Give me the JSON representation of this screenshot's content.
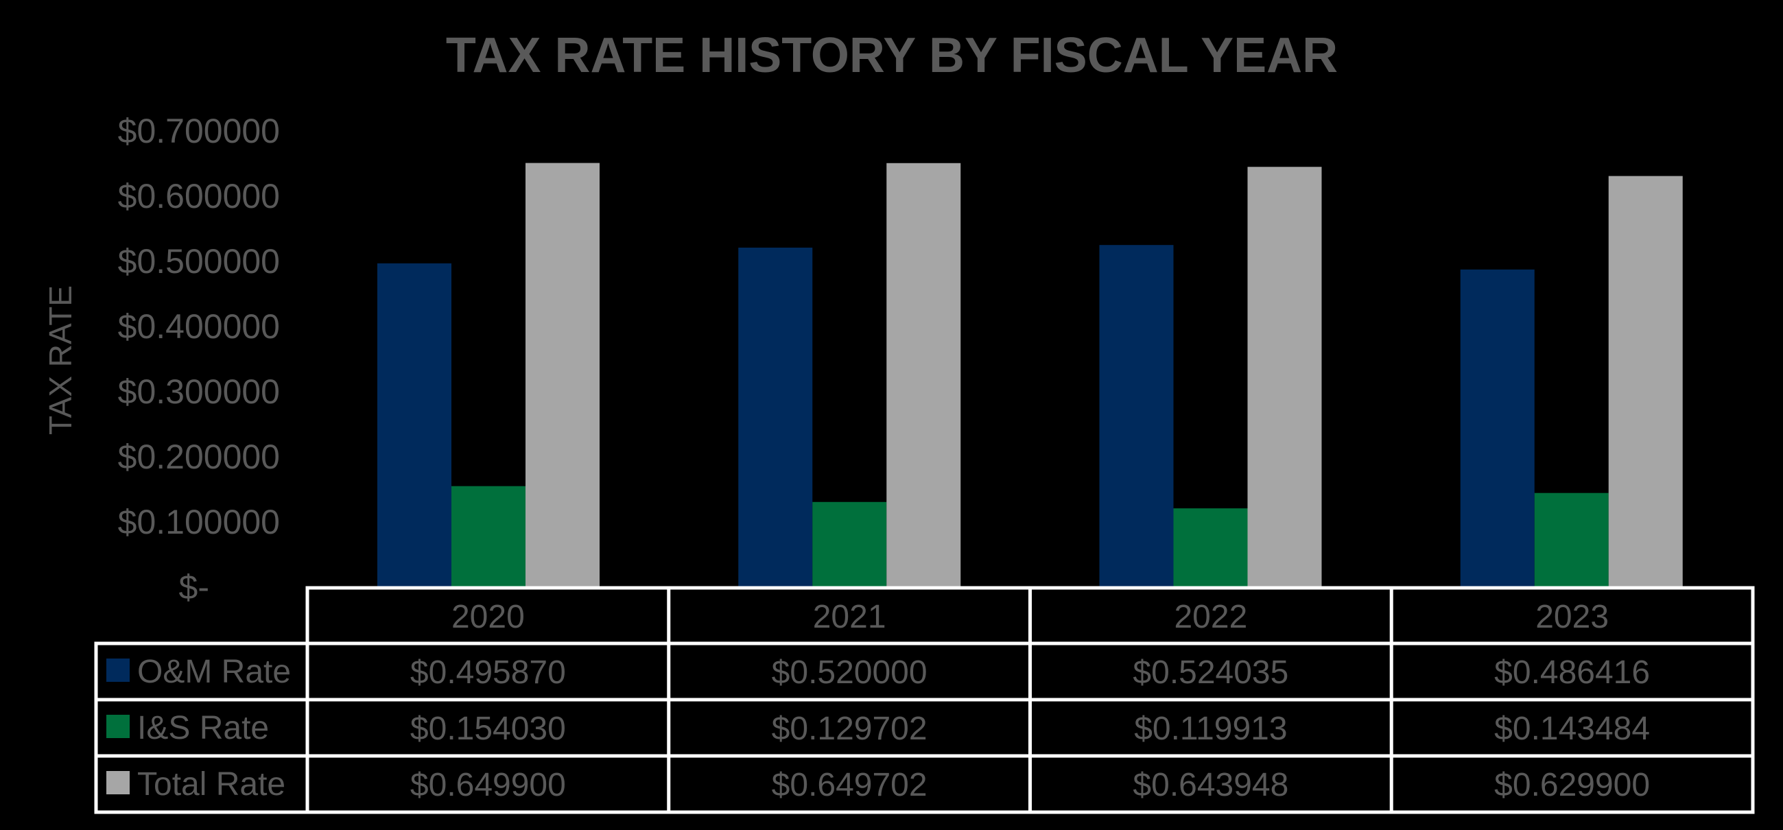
{
  "chart_data": {
    "type": "bar",
    "title": "TAX RATE HISTORY BY FISCAL YEAR",
    "xlabel": "",
    "ylabel": "TAX RATE",
    "ylim": [
      0,
      0.7
    ],
    "y_ticks": [
      {
        "value": 0.7,
        "label": "$0.700000"
      },
      {
        "value": 0.6,
        "label": "$0.600000"
      },
      {
        "value": 0.5,
        "label": "$0.500000"
      },
      {
        "value": 0.4,
        "label": "$0.400000"
      },
      {
        "value": 0.3,
        "label": "$0.300000"
      },
      {
        "value": 0.2,
        "label": "$0.200000"
      },
      {
        "value": 0.1,
        "label": "$0.100000"
      },
      {
        "value": 0,
        "label": "$-"
      }
    ],
    "categories": [
      "2020",
      "2021",
      "2022",
      "2023"
    ],
    "series": [
      {
        "name": "O&M Rate",
        "color": "#002a5c",
        "values": [
          0.49587,
          0.52,
          0.524035,
          0.486416
        ],
        "labels": [
          "$0.495870",
          "$0.520000",
          "$0.524035",
          "$0.486416"
        ]
      },
      {
        "name": "I&S Rate",
        "color": "#00703c",
        "values": [
          0.15403,
          0.129702,
          0.119913,
          0.143484
        ],
        "labels": [
          "$0.154030",
          "$0.129702",
          "$0.119913",
          "$0.143484"
        ]
      },
      {
        "name": "Total Rate",
        "color": "#a6a6a6",
        "values": [
          0.6499,
          0.649702,
          0.643948,
          0.6299
        ],
        "labels": [
          "$0.649900",
          "$0.649702",
          "$0.643948",
          "$0.629900"
        ]
      }
    ],
    "legend": "data-table-below"
  }
}
